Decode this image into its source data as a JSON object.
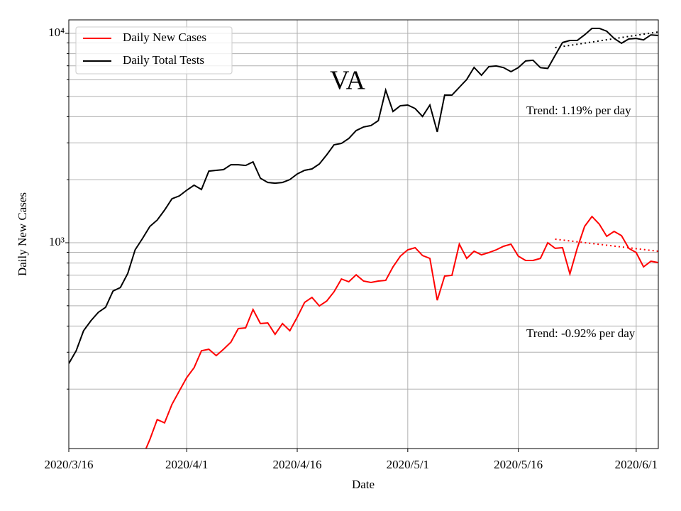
{
  "chart_data": {
    "type": "line",
    "annotations": [
      "VA",
      "Trend: 1.19% per day",
      "Trend: -0.92% per day"
    ],
    "xlabel": "Date",
    "ylabel": "Daily New Cases",
    "log_y": true,
    "grid": true,
    "legend": "upper left",
    "x": [
      "2020-03-16",
      "2020-03-17",
      "2020-03-18",
      "2020-03-19",
      "2020-03-20",
      "2020-03-21",
      "2020-03-22",
      "2020-03-23",
      "2020-03-24",
      "2020-03-25",
      "2020-03-26",
      "2020-03-27",
      "2020-03-28",
      "2020-03-29",
      "2020-03-30",
      "2020-03-31",
      "2020-04-01",
      "2020-04-02",
      "2020-04-03",
      "2020-04-04",
      "2020-04-05",
      "2020-04-06",
      "2020-04-07",
      "2020-04-08",
      "2020-04-09",
      "2020-04-10",
      "2020-04-11",
      "2020-04-12",
      "2020-04-13",
      "2020-04-14",
      "2020-04-15",
      "2020-04-16",
      "2020-04-17",
      "2020-04-18",
      "2020-04-19",
      "2020-04-20",
      "2020-04-21",
      "2020-04-22",
      "2020-04-23",
      "2020-04-24",
      "2020-04-25",
      "2020-04-26",
      "2020-04-27",
      "2020-04-28",
      "2020-04-29",
      "2020-04-30",
      "2020-05-01",
      "2020-05-02",
      "2020-05-03",
      "2020-05-04",
      "2020-05-05",
      "2020-05-06",
      "2020-05-07",
      "2020-05-08",
      "2020-05-09",
      "2020-05-10",
      "2020-05-11",
      "2020-05-12",
      "2020-05-13",
      "2020-05-14",
      "2020-05-15",
      "2020-05-16",
      "2020-05-17",
      "2020-05-18",
      "2020-05-19",
      "2020-05-20",
      "2020-05-21",
      "2020-05-22",
      "2020-05-23",
      "2020-05-24",
      "2020-05-25",
      "2020-05-26",
      "2020-05-27",
      "2020-05-28",
      "2020-05-29",
      "2020-05-30",
      "2020-05-31",
      "2020-06-01",
      "2020-06-02",
      "2020-06-03",
      "2020-06-04"
    ],
    "series": [
      {
        "name": "Daily New Cases",
        "color": "#ff0000",
        "values": [
          null,
          null,
          null,
          null,
          null,
          null,
          null,
          null,
          null,
          null,
          95,
          115,
          143,
          138,
          169,
          196,
          227,
          253,
          305,
          310,
          289,
          310,
          335,
          389,
          392,
          480,
          411,
          414,
          365,
          411,
          380,
          441,
          519,
          548,
          499,
          527,
          583,
          671,
          651,
          703,
          656,
          646,
          656,
          661,
          767,
          863,
          925,
          947,
          869,
          842,
          531,
          693,
          699,
          985,
          842,
          911,
          876,
          897,
          925,
          962,
          985,
          863,
          823,
          823,
          842,
          1000,
          940,
          947,
          710,
          940,
          1197,
          1335,
          1225,
          1073,
          1133,
          1081,
          940,
          897,
          767,
          816,
          804
        ]
      },
      {
        "name": "Daily Total Tests",
        "color": "#000000",
        "values": [
          265,
          305,
          380,
          424,
          465,
          492,
          588,
          611,
          714,
          925,
          1048,
          1197,
          1283,
          1432,
          1622,
          1674,
          1782,
          1884,
          1796,
          2199,
          2218,
          2234,
          2359,
          2359,
          2340,
          2433,
          2033,
          1940,
          1925,
          1940,
          2004,
          2131,
          2218,
          2252,
          2378,
          2630,
          2936,
          2980,
          3148,
          3434,
          3572,
          3629,
          3829,
          5357,
          4236,
          4510,
          4545,
          4375,
          4011,
          4545,
          3381,
          5070,
          5070,
          5525,
          6020,
          6875,
          6310,
          6934,
          6990,
          6860,
          6560,
          6860,
          7380,
          7440,
          6860,
          6800,
          7850,
          9040,
          9250,
          9250,
          9840,
          10560,
          10560,
          10240,
          9460,
          8970,
          9400,
          9460,
          9310,
          9840,
          9770
        ]
      }
    ],
    "trends": [
      {
        "color": "#ff0000",
        "x": [
          "2020-05-21",
          "2020-06-04"
        ],
        "values": [
          1040,
          911
        ]
      },
      {
        "color": "#000000",
        "x": [
          "2020-05-21",
          "2020-06-04"
        ],
        "values": [
          8550,
          10160
        ]
      }
    ],
    "xlim": [
      "2020-03-16",
      "2020-06-04"
    ],
    "xticks": [
      {
        "value": "2020-03-16",
        "label": "2020/3/16"
      },
      {
        "value": "2020-04-01",
        "label": "2020/4/1"
      },
      {
        "value": "2020-04-16",
        "label": "2020/4/16"
      },
      {
        "value": "2020-05-01",
        "label": "2020/5/1"
      },
      {
        "value": "2020-05-16",
        "label": "2020/5/16"
      },
      {
        "value": "2020-06-01",
        "label": "2020/6/1"
      }
    ],
    "ylim": [
      104,
      11600
    ],
    "yticks": [
      {
        "value": 1000,
        "label": "10³"
      },
      {
        "value": 10000,
        "label": "10⁴"
      }
    ],
    "yminorticks": [
      200,
      300,
      400,
      500,
      600,
      700,
      800,
      900,
      2000,
      3000,
      4000,
      5000,
      6000,
      7000,
      8000,
      9000
    ]
  }
}
